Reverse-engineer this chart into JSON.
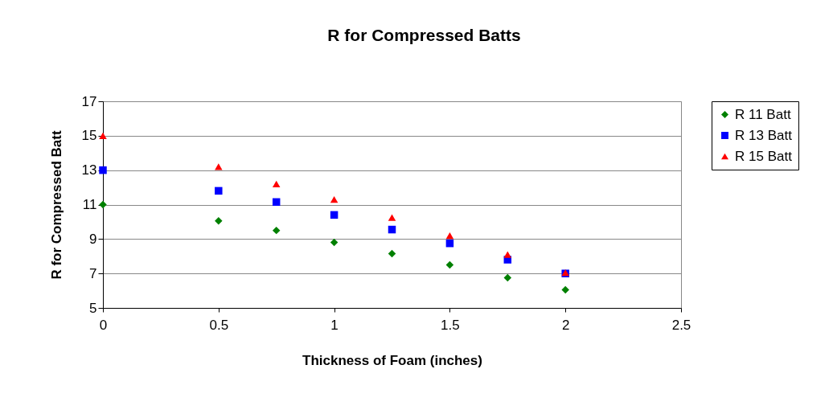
{
  "chart_data": {
    "type": "scatter",
    "title": "R for Compressed Batts",
    "xlabel": "Thickness of Foam (inches)",
    "ylabel": "R for Compressed Batt",
    "x": [
      0,
      0.5,
      0.75,
      1,
      1.25,
      1.5,
      1.75,
      2
    ],
    "series": [
      {
        "name": "R 11 Batt",
        "color": "#008000",
        "marker": "diamond",
        "values": [
          11,
          10.05,
          9.5,
          8.8,
          8.15,
          7.5,
          6.75,
          6.05
        ]
      },
      {
        "name": "R 13 Batt",
        "color": "#0000ff",
        "marker": "square",
        "values": [
          13,
          11.8,
          11.15,
          10.4,
          9.55,
          8.75,
          7.8,
          7
        ]
      },
      {
        "name": "R 15 Batt",
        "color": "#ff0000",
        "marker": "triangle",
        "values": [
          15,
          13.2,
          12.2,
          11.3,
          10.25,
          9.2,
          8.1,
          7.05
        ]
      }
    ],
    "xlim": [
      0,
      2.5
    ],
    "xticks": [
      0,
      0.5,
      1,
      1.5,
      2,
      2.5
    ],
    "ylim": [
      5,
      17
    ],
    "yticks": [
      5,
      7,
      9,
      11,
      13,
      15,
      17
    ],
    "grid": "y",
    "legend": "right"
  }
}
